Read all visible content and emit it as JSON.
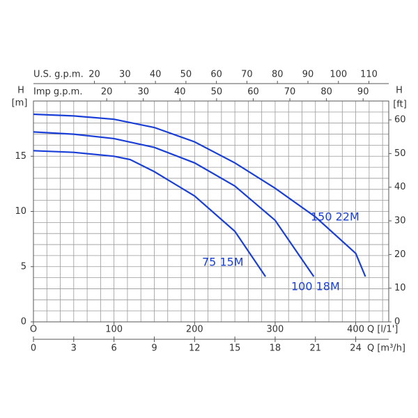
{
  "chart_data": {
    "type": "line",
    "y_label": "H",
    "y_unit": "[m]",
    "y2_label": "H",
    "y2_unit": "[ft]",
    "x_label": "Q [l/1']",
    "x2_label": "Q [m³/h]",
    "x3_label": "U.S. g.p.m.",
    "x4_label": "Imp g.p.m.",
    "xlim": [
      0,
      441
    ],
    "xticks": [
      {
        "value": 0,
        "label": "O"
      },
      100,
      200,
      300,
      400
    ],
    "x2lim": [
      0,
      26.46
    ],
    "x2ticks": [
      0,
      3,
      6,
      9,
      12,
      15,
      18,
      21,
      24
    ],
    "x3lim": [
      0,
      116.5
    ],
    "x3ticks": [
      20,
      30,
      40,
      50,
      60,
      70,
      80,
      90,
      100,
      110
    ],
    "x4lim": [
      0,
      97
    ],
    "x4ticks": [
      20,
      30,
      40,
      50,
      60,
      70,
      80,
      90
    ],
    "ylim": [
      0,
      20
    ],
    "yticks": [
      0,
      5,
      10,
      15
    ],
    "y2lim": [
      0,
      65.6
    ],
    "y2ticks": [
      0,
      10,
      20,
      30,
      40,
      50,
      60
    ],
    "grid": true,
    "series": [
      {
        "name": "150 22M",
        "color": "#1a3fd6",
        "x": [
          0,
          50,
          100,
          150,
          200,
          250,
          300,
          350,
          400,
          412
        ],
        "values": [
          18.8,
          18.65,
          18.35,
          17.6,
          16.3,
          14.4,
          12.1,
          9.5,
          6.2,
          4.1
        ]
      },
      {
        "name": "100 18M",
        "color": "#1a3fd6",
        "x": [
          0,
          50,
          100,
          150,
          200,
          250,
          300,
          348
        ],
        "values": [
          17.2,
          17.0,
          16.6,
          15.8,
          14.4,
          12.3,
          9.2,
          4.1
        ]
      },
      {
        "name": "75 15M",
        "color": "#1a3fd6",
        "x": [
          0,
          50,
          100,
          120,
          150,
          200,
          250,
          288
        ],
        "values": [
          15.5,
          15.35,
          15.0,
          14.7,
          13.6,
          11.4,
          8.2,
          4.1
        ]
      }
    ]
  }
}
